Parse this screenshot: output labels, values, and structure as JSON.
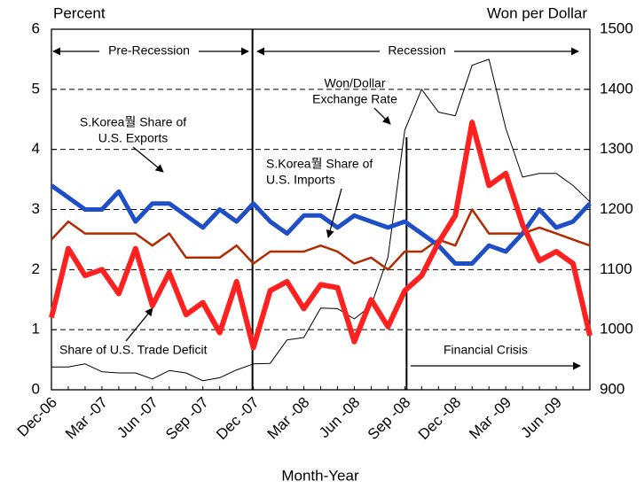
{
  "chart_data": {
    "type": "line",
    "y_label": "Percent",
    "y2_label": "Won per Dollar",
    "x_label": "Month-Year",
    "x": [
      "Dec-06",
      null,
      null,
      "Mar -07",
      null,
      null,
      "Jun -07",
      null,
      null,
      "Sep -07",
      null,
      null,
      "Dec -07",
      null,
      null,
      "Mar -08",
      null,
      null,
      "Jun -08",
      null,
      null,
      "Sep -08",
      null,
      null,
      "Dec -08",
      null,
      null,
      "Mar -09",
      null,
      null,
      "Jun -09",
      null,
      null
    ],
    "series": [
      {
        "color": "#000000",
        "axis": "y2",
        "width": 1,
        "values": [
          938,
          938,
          943,
          930,
          928,
          928,
          918,
          932,
          928,
          915,
          920,
          933,
          943,
          944,
          983,
          987,
          1036,
          1035,
          1018,
          1040,
          1121,
          1332,
          1400,
          1362,
          1356,
          1440,
          1450,
          1335,
          1254,
          1260,
          1260,
          1240,
          1213
        ]
      },
      {
        "color": "#b22a00",
        "axis": "y",
        "width": 2.5,
        "values": [
          2.5,
          2.8,
          2.6,
          2.6,
          2.6,
          2.6,
          2.4,
          2.6,
          2.2,
          2.2,
          2.2,
          2.4,
          2.1,
          2.3,
          2.3,
          2.3,
          2.4,
          2.3,
          2.1,
          2.2,
          2.0,
          2.3,
          2.3,
          2.5,
          2.4,
          3.0,
          2.6,
          2.6,
          2.6,
          2.7,
          2.6,
          2.5,
          2.4
        ]
      },
      {
        "color": "#1f4fc8",
        "axis": "y",
        "width": 5,
        "values": [
          3.4,
          3.2,
          3.0,
          3.0,
          3.3,
          2.8,
          3.1,
          3.1,
          2.9,
          2.7,
          3.0,
          2.8,
          3.1,
          2.8,
          2.6,
          2.9,
          2.9,
          2.7,
          2.9,
          2.8,
          2.7,
          2.8,
          2.6,
          2.4,
          2.1,
          2.1,
          2.4,
          2.3,
          2.6,
          3.0,
          2.7,
          2.8,
          3.1
        ]
      },
      {
        "color": "#ff2020",
        "axis": "y",
        "width": 6,
        "values": [
          1.2,
          2.35,
          1.9,
          2.0,
          1.6,
          2.35,
          1.4,
          1.95,
          1.25,
          1.45,
          0.95,
          1.8,
          0.7,
          1.65,
          1.8,
          1.35,
          1.75,
          1.7,
          0.8,
          1.5,
          1.05,
          1.65,
          1.9,
          2.45,
          2.9,
          4.45,
          3.4,
          3.6,
          2.75,
          2.15,
          2.3,
          2.1,
          0.9
        ]
      }
    ],
    "ylim": [
      0,
      6
    ],
    "yticks": [
      0,
      1,
      2,
      3,
      4,
      5,
      6
    ],
    "y2lim": [
      900,
      1500
    ],
    "y2ticks": [
      900,
      1000,
      1100,
      1200,
      1300,
      1400,
      1500
    ],
    "grid": true,
    "annotations": [
      [
        "Pre-Recession"
      ],
      [
        "Recession"
      ],
      [
        "Won/Dollar",
        "Exchange Rate"
      ],
      [
        "S.Korea뭘 Share of",
        "U.S. Exports"
      ],
      [
        "S.Korea뭘 Share of",
        "U.S. Imports"
      ],
      [
        "Share of U.S. Trade Deficit"
      ],
      [
        "Financial Crisis"
      ]
    ]
  }
}
